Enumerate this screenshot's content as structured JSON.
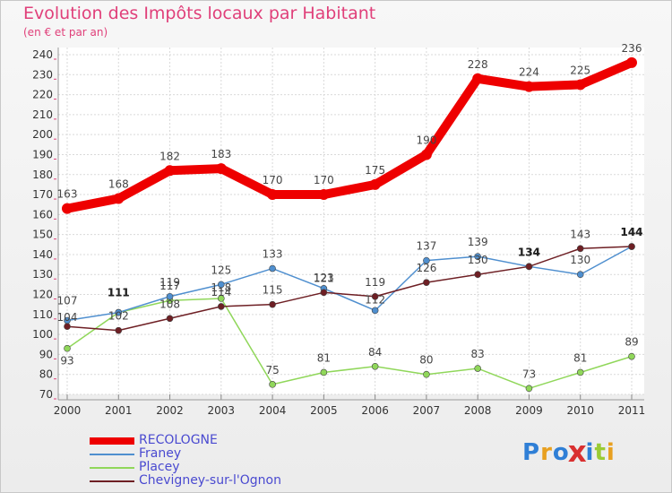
{
  "chart_data": {
    "type": "line",
    "title": "Evolution des Impôts locaux par Habitant",
    "subtitle": "(en € et par an)",
    "categories": [
      "2000",
      "2001",
      "2002",
      "2003",
      "2004",
      "2005",
      "2006",
      "2007",
      "2008",
      "2009",
      "2010",
      "2011"
    ],
    "ylim": [
      70,
      240
    ],
    "yticks": [
      70,
      80,
      90,
      100,
      110,
      120,
      130,
      140,
      150,
      160,
      170,
      180,
      190,
      200,
      210,
      220,
      230,
      240
    ],
    "grid": true,
    "legend_position": "bottom-left",
    "series": [
      {
        "name": "RECOLOGNE",
        "color": "#ee0000",
        "values": [
          163,
          168,
          182,
          183,
          170,
          170,
          175,
          190,
          228,
          224,
          225,
          236
        ]
      },
      {
        "name": "Franey",
        "color": "#4f8fcf",
        "values": [
          107,
          111,
          119,
          125,
          133,
          123,
          112,
          137,
          139,
          134,
          130,
          144
        ]
      },
      {
        "name": "Placey",
        "color": "#90d75a",
        "values": [
          93,
          111,
          117,
          118,
          75,
          81,
          84,
          80,
          83,
          73,
          81,
          89
        ]
      },
      {
        "name": "Chevigney-sur-l'Ognon",
        "color": "#6e1f24",
        "values": [
          104,
          102,
          108,
          114,
          115,
          121,
          119,
          126,
          130,
          134,
          143,
          144
        ]
      }
    ]
  },
  "legend": {
    "items": [
      {
        "label": "RECOLOGNE",
        "color": "#ee0000",
        "text_color": "#4a4ad0"
      },
      {
        "label": "Franey",
        "color": "#4f8fcf",
        "text_color": "#4a4ad0"
      },
      {
        "label": "Placey",
        "color": "#90d75a",
        "text_color": "#4a4ad0"
      },
      {
        "label": "Chevigney-sur-l'Ognon",
        "color": "#6e1f24",
        "text_color": "#4a4ad0"
      }
    ]
  },
  "logo": {
    "letters": [
      "P",
      "r",
      "o",
      "x",
      "i",
      "t",
      "i"
    ],
    "colors": [
      "#2f7fd6",
      "#e8a020",
      "#2f7fd6",
      "#d93030",
      "#2f7fd6",
      "#9acb34",
      "#e8a020"
    ]
  }
}
